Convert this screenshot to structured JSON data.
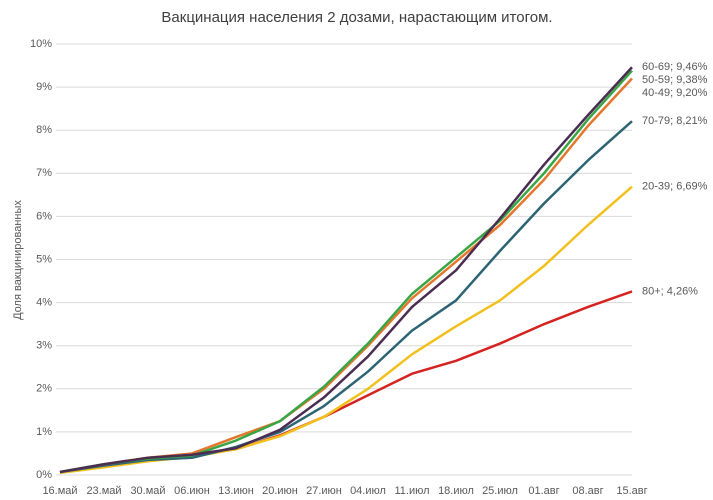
{
  "chart_data": {
    "type": "line",
    "title": "Вакцинация населения 2 дозами, нарастающим итогом.",
    "y_label": "Доля вакцинированных",
    "categories": [
      "16.май",
      "23.май",
      "30.май",
      "06.июн",
      "13.июн",
      "20.июн",
      "27.июн",
      "04.июл",
      "11.июл",
      "18.июл",
      "25.июл",
      "01.авг",
      "08.авг",
      "15.авг"
    ],
    "ylim": [
      0,
      10
    ],
    "yticks": [
      {
        "value": 0,
        "label": "0%"
      },
      {
        "value": 1,
        "label": "1%"
      },
      {
        "value": 2,
        "label": "2%"
      },
      {
        "value": 3,
        "label": "3%"
      },
      {
        "value": 4,
        "label": "4%"
      },
      {
        "value": 5,
        "label": "5%"
      },
      {
        "value": 6,
        "label": "6%"
      },
      {
        "value": 7,
        "label": "7%"
      },
      {
        "value": 8,
        "label": "8%"
      },
      {
        "value": 9,
        "label": "9%"
      },
      {
        "value": 10,
        "label": "10%"
      }
    ],
    "grid": true,
    "series": [
      {
        "name": "60-69",
        "color": "#4b2d52",
        "values": [
          0.07,
          0.25,
          0.4,
          0.47,
          0.62,
          1.05,
          1.8,
          2.75,
          3.9,
          4.75,
          5.95,
          7.2,
          8.35,
          9.46
        ],
        "value_labels": [
          null,
          null,
          null,
          null,
          null,
          null,
          null,
          null,
          null,
          null,
          null,
          null,
          null,
          "60-69; 9,46%"
        ]
      },
      {
        "name": "50-59",
        "color": "#3aa545",
        "values": [
          0.07,
          0.25,
          0.38,
          0.45,
          0.8,
          1.25,
          2.05,
          3.05,
          4.2,
          5.05,
          5.9,
          7.0,
          8.25,
          9.38
        ],
        "value_labels": [
          null,
          null,
          null,
          null,
          null,
          null,
          null,
          null,
          null,
          null,
          null,
          null,
          null,
          "50-59; 9,38%"
        ]
      },
      {
        "name": "40-49",
        "color": "#e5772c",
        "values": [
          0.07,
          0.25,
          0.4,
          0.5,
          0.88,
          1.25,
          2.0,
          3.0,
          4.1,
          4.95,
          5.8,
          6.85,
          8.1,
          9.2
        ],
        "value_labels": [
          null,
          null,
          null,
          null,
          null,
          null,
          null,
          null,
          null,
          null,
          null,
          null,
          null,
          "40-49; 9,20%"
        ]
      },
      {
        "name": "70-79",
        "color": "#2d6474",
        "values": [
          0.07,
          0.22,
          0.35,
          0.4,
          0.65,
          1.0,
          1.6,
          2.4,
          3.35,
          4.05,
          5.2,
          6.3,
          7.3,
          8.21
        ],
        "value_labels": [
          null,
          null,
          null,
          null,
          null,
          null,
          null,
          null,
          null,
          null,
          null,
          null,
          null,
          "70-79; 8,21%"
        ]
      },
      {
        "name": "20-39",
        "color": "#f2c01c",
        "values": [
          0.05,
          0.18,
          0.32,
          0.42,
          0.6,
          0.9,
          1.35,
          2.0,
          2.8,
          3.45,
          4.05,
          4.85,
          5.8,
          6.69
        ],
        "value_labels": [
          null,
          null,
          null,
          null,
          null,
          null,
          null,
          null,
          null,
          null,
          null,
          null,
          null,
          "20-39; 6,69%"
        ]
      },
      {
        "name": "80+",
        "color": "#d42320",
        "values": [
          0.06,
          0.22,
          0.38,
          0.45,
          0.6,
          0.92,
          1.35,
          1.85,
          2.35,
          2.65,
          3.05,
          3.5,
          3.9,
          4.26
        ],
        "value_labels": [
          null,
          null,
          null,
          null,
          null,
          null,
          null,
          null,
          null,
          null,
          null,
          null,
          null,
          "80+; 4,26%"
        ]
      }
    ]
  }
}
